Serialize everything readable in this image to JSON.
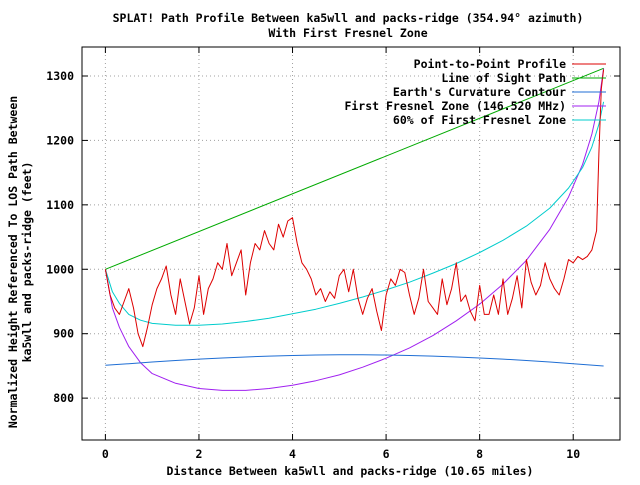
{
  "chart_data": {
    "type": "line",
    "title": "SPLAT! Path Profile Between ka5wll and packs-ridge (354.94° azimuth)",
    "subtitle": "With First Fresnel Zone",
    "xlabel": "Distance Between ka5wll and packs-ridge (10.65 miles)",
    "ylabel_line1": "Normalized Height Referenced To LOS Path Between",
    "ylabel_line2": "ka5wll and packs-ridge (feet)",
    "xlim": [
      -0.5,
      11.0
    ],
    "ylim": [
      735,
      1345
    ],
    "x_ticks": [
      0,
      2,
      4,
      6,
      8,
      10
    ],
    "y_ticks": [
      800,
      900,
      1000,
      1100,
      1200,
      1300
    ],
    "grid": true,
    "legend_position": "top-right",
    "series": [
      {
        "name": "Point-to-Point Profile",
        "color": "#dd0000",
        "x": [
          0.0,
          0.1,
          0.2,
          0.3,
          0.4,
          0.5,
          0.6,
          0.7,
          0.8,
          0.9,
          1.0,
          1.1,
          1.2,
          1.3,
          1.4,
          1.5,
          1.6,
          1.7,
          1.8,
          1.9,
          2.0,
          2.1,
          2.2,
          2.3,
          2.4,
          2.5,
          2.6,
          2.7,
          2.8,
          2.9,
          3.0,
          3.1,
          3.2,
          3.3,
          3.4,
          3.5,
          3.6,
          3.7,
          3.8,
          3.9,
          4.0,
          4.1,
          4.2,
          4.3,
          4.4,
          4.5,
          4.6,
          4.7,
          4.8,
          4.9,
          5.0,
          5.1,
          5.2,
          5.3,
          5.4,
          5.5,
          5.6,
          5.7,
          5.8,
          5.9,
          6.0,
          6.1,
          6.2,
          6.3,
          6.4,
          6.5,
          6.6,
          6.7,
          6.8,
          6.9,
          7.0,
          7.1,
          7.2,
          7.3,
          7.4,
          7.5,
          7.6,
          7.7,
          7.8,
          7.9,
          8.0,
          8.1,
          8.2,
          8.3,
          8.4,
          8.5,
          8.6,
          8.7,
          8.8,
          8.9,
          9.0,
          9.1,
          9.2,
          9.3,
          9.4,
          9.5,
          9.6,
          9.7,
          9.8,
          9.9,
          10.0,
          10.1,
          10.2,
          10.3,
          10.4,
          10.5,
          10.55,
          10.6,
          10.65
        ],
        "values": [
          1000,
          960,
          940,
          930,
          950,
          970,
          940,
          900,
          880,
          910,
          945,
          970,
          985,
          1005,
          960,
          930,
          985,
          950,
          915,
          940,
          990,
          930,
          970,
          985,
          1010,
          1000,
          1040,
          990,
          1010,
          1030,
          960,
          1010,
          1040,
          1030,
          1060,
          1040,
          1030,
          1070,
          1050,
          1075,
          1080,
          1040,
          1010,
          1000,
          985,
          960,
          970,
          950,
          965,
          955,
          990,
          1000,
          965,
          1000,
          955,
          930,
          955,
          970,
          935,
          905,
          960,
          985,
          975,
          1000,
          995,
          960,
          930,
          955,
          1000,
          950,
          940,
          930,
          985,
          945,
          970,
          1010,
          950,
          960,
          935,
          920,
          975,
          930,
          930,
          960,
          930,
          985,
          930,
          955,
          990,
          940,
          1015,
          980,
          960,
          975,
          1010,
          985,
          970,
          960,
          985,
          1015,
          1010,
          1020,
          1015,
          1020,
          1030,
          1060,
          1180,
          1280,
          1310
        ]
      },
      {
        "name": "Line of Sight Path",
        "color": "#00aa00",
        "x": [
          0,
          10.65
        ],
        "values": [
          1000,
          1312
        ]
      },
      {
        "name": "Earth's Curvature Contour",
        "color": "#1f6ed4",
        "x": [
          0,
          0.5,
          1,
          1.5,
          2,
          2.5,
          3,
          3.5,
          4,
          4.5,
          5,
          5.5,
          6,
          6.5,
          7,
          7.5,
          8,
          8.5,
          9,
          9.5,
          10,
          10.65
        ],
        "values": [
          851,
          853.5,
          856,
          858.4,
          860.5,
          862.3,
          863.9,
          865.2,
          866.2,
          866.9,
          867.2,
          867.2,
          866.9,
          866.2,
          865.2,
          863.9,
          862.3,
          860.5,
          858.4,
          856.1,
          853.4,
          849.8
        ]
      },
      {
        "name": "First Fresnel Zone (146.520 MHz)",
        "color": "#a020f0",
        "x": [
          0,
          0.15,
          0.3,
          0.5,
          0.75,
          1,
          1.5,
          2,
          2.5,
          3,
          3.5,
          4,
          4.5,
          5,
          5.5,
          6,
          6.5,
          7,
          7.5,
          8,
          8.5,
          9,
          9.5,
          9.9,
          10.2,
          10.4,
          10.55,
          10.65
        ],
        "values": [
          1000,
          940,
          910,
          880,
          855,
          838,
          823,
          815,
          812,
          812,
          815,
          820,
          827,
          836,
          848,
          862,
          878,
          897,
          920,
          946,
          977,
          1014,
          1062,
          1112,
          1163,
          1210,
          1260,
          1312
        ]
      },
      {
        "name": "60% of First Fresnel Zone",
        "color": "#00cccc",
        "x": [
          0,
          0.15,
          0.3,
          0.5,
          0.75,
          1,
          1.5,
          2,
          2.5,
          3,
          3.5,
          4,
          4.5,
          5,
          5.5,
          6,
          6.5,
          7,
          7.5,
          8,
          8.5,
          9,
          9.5,
          9.9,
          10.2,
          10.4,
          10.55,
          10.65
        ],
        "values": [
          1000,
          965,
          947,
          930,
          921,
          916,
          913,
          913,
          915,
          919,
          924,
          931,
          938,
          947,
          957,
          968,
          980,
          994,
          1009,
          1026,
          1045,
          1067,
          1095,
          1126,
          1158,
          1190,
          1225,
          1260
        ]
      }
    ]
  }
}
